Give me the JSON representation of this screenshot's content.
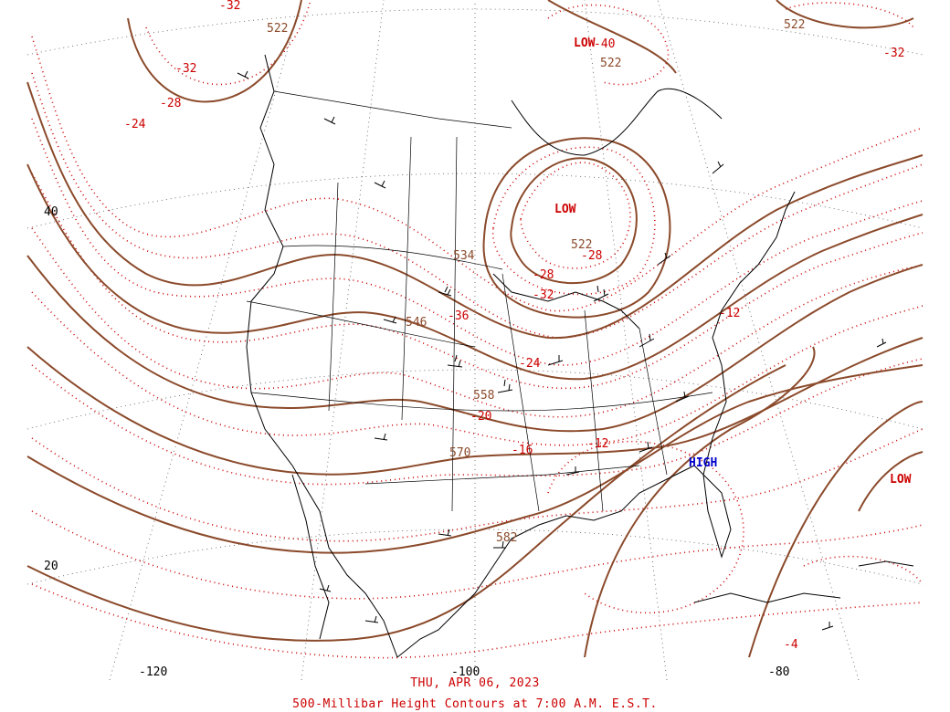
{
  "colors": {
    "height_contour": "#8b4a2b",
    "temp_contour": "#cc0000",
    "coast": "#000000",
    "grid": "#555555",
    "high_label": "#0000cc",
    "low_label": "#cc0000"
  },
  "caption": {
    "date": "THU, APR 06, 2023",
    "title": "500-Millibar Height Contours at 7:00 A.M. E.S.T."
  },
  "axes": {
    "lat_labels": [
      "40",
      "20"
    ],
    "lon_labels": [
      "-120",
      "-100",
      "-80"
    ]
  },
  "pressure_systems": [
    {
      "kind": "low",
      "text": "LOW",
      "where": "south-central Canada"
    },
    {
      "kind": "low",
      "text": "LOW",
      "where": "northern Canada"
    },
    {
      "kind": "low",
      "text": "LOW",
      "where": "western Atlantic"
    },
    {
      "kind": "high",
      "text": "HIGH",
      "where": "southeast US"
    }
  ],
  "height_labels": [
    "522",
    "522",
    "522",
    "522",
    "534",
    "546",
    "558",
    "570",
    "582"
  ],
  "temp_labels": [
    "-32",
    "-28",
    "-24",
    "-36",
    "-32",
    "-28",
    "-28",
    "-24",
    "-20",
    "-16",
    "-12",
    "-12",
    "-32",
    "-4",
    "-40",
    "-32"
  ]
}
